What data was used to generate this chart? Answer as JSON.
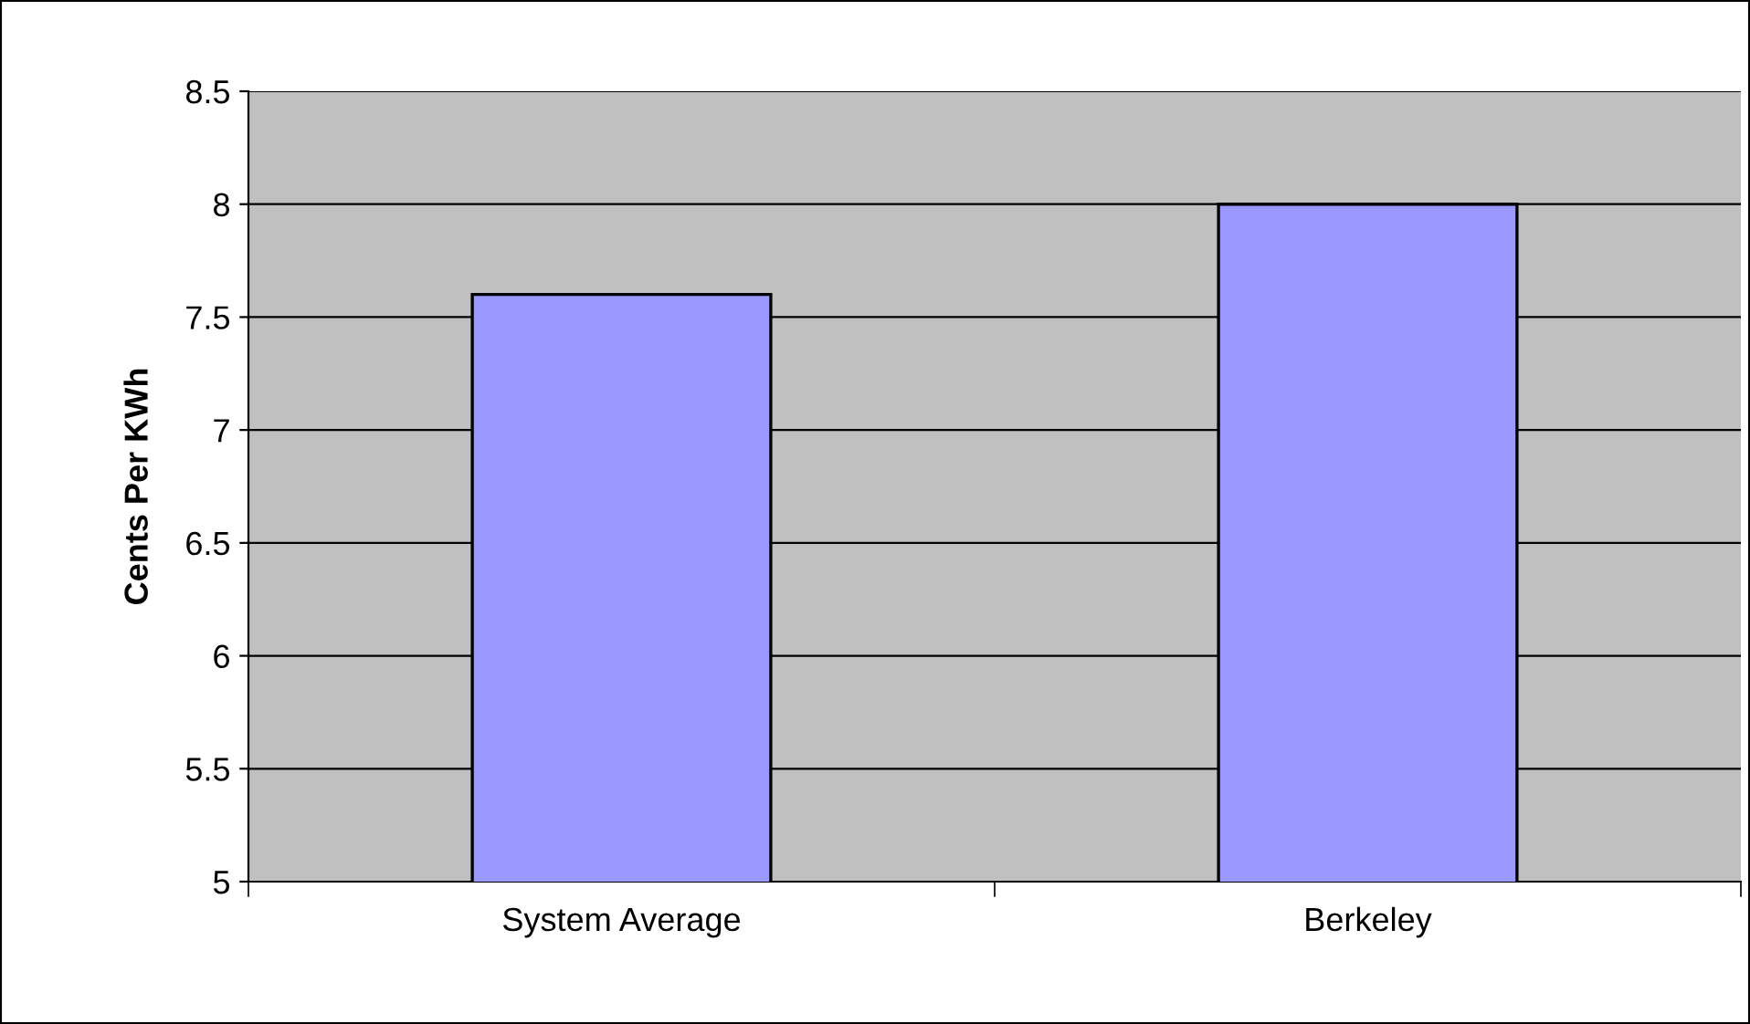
{
  "chart_data": {
    "type": "bar",
    "ylabel": "Cents Per KWh",
    "categories": [
      "System Average",
      "Berkeley"
    ],
    "values": [
      7.6,
      8.0
    ],
    "color": "#9999ff",
    "ylim": [
      5,
      8.5
    ],
    "yticks": [
      5,
      5.5,
      6,
      6.5,
      7,
      7.5,
      8,
      8.5
    ],
    "grid": "y"
  }
}
